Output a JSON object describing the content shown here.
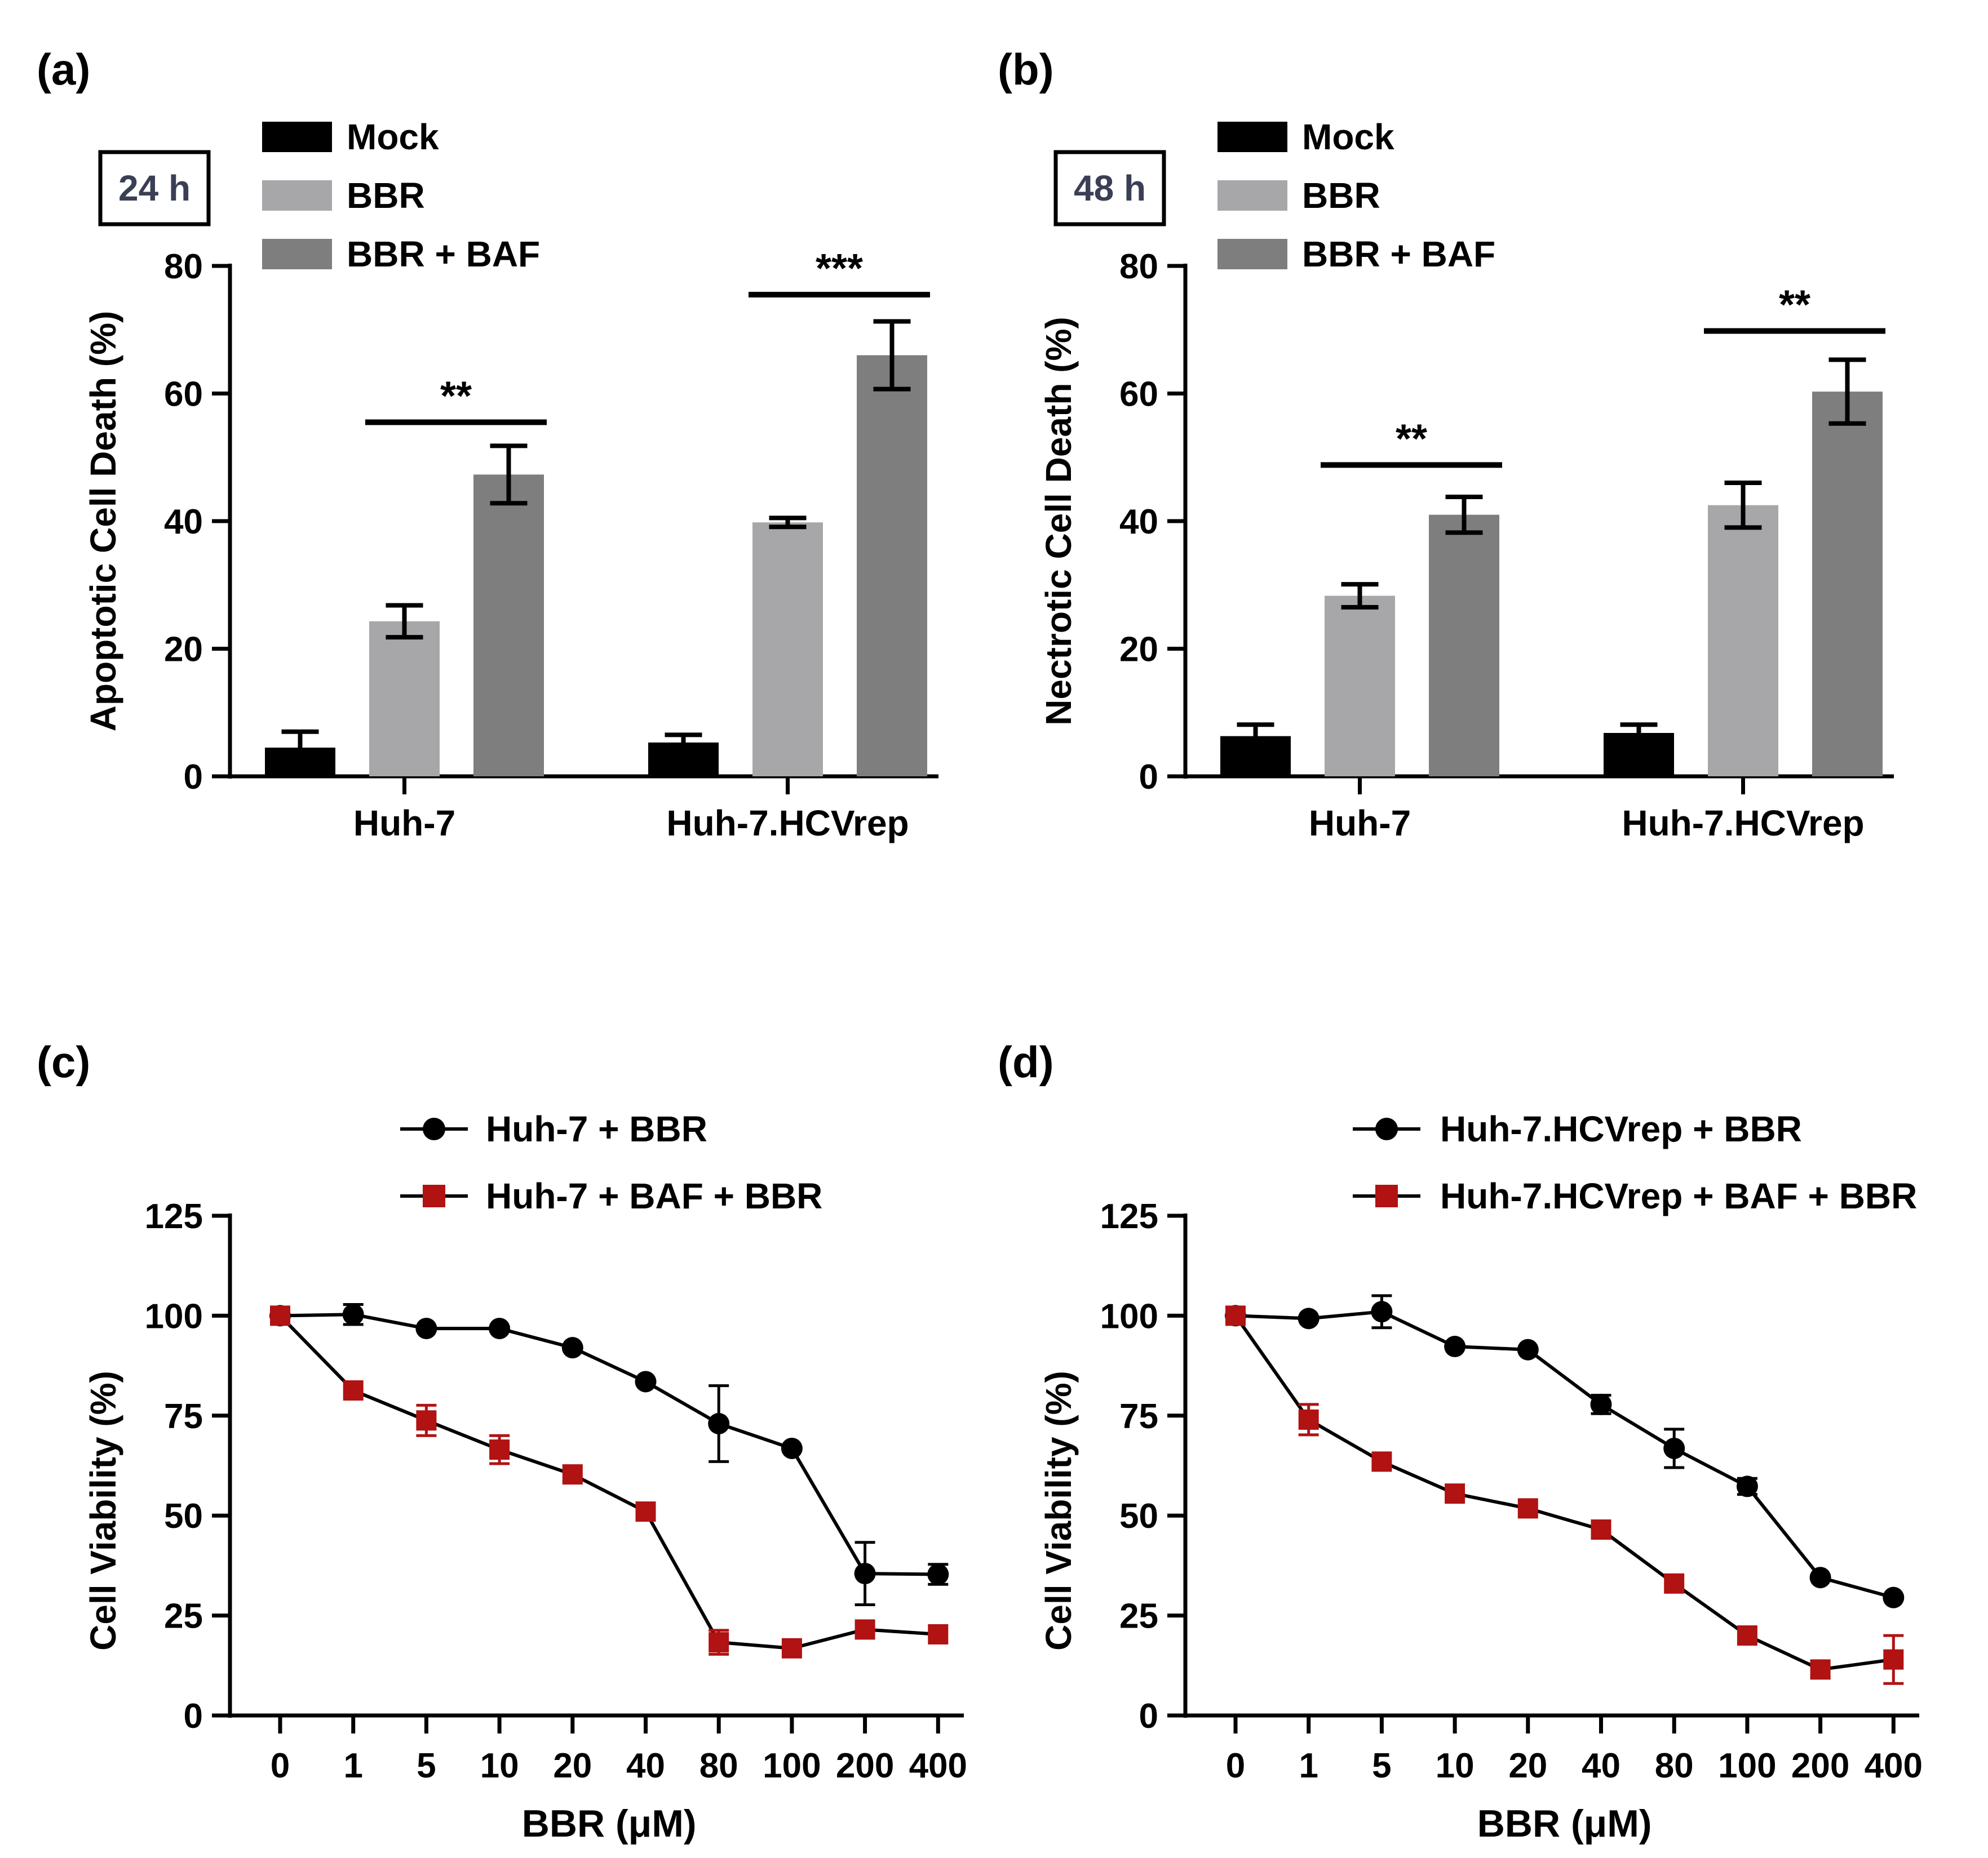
{
  "colors": {
    "mock": "#000000",
    "bbr": "#a7a7aa",
    "bbr_baf": "#7e7e7e",
    "black_line": "#000000",
    "red_line": "#b11212"
  },
  "chart_data": [
    {
      "panel": "(a)",
      "type": "bar",
      "badge": "24 h",
      "ylabel": "Apoptotic Cell Death (%)",
      "xlabel": "",
      "ylim": [
        0,
        80
      ],
      "yticks": [
        "0",
        "20",
        "40",
        "60",
        "80"
      ],
      "categories": [
        "Huh-7",
        "Huh-7.HCVrep"
      ],
      "series": [
        {
          "name": "Mock",
          "values": [
            4.5,
            5.3
          ],
          "errors": [
            2.5,
            1.2
          ]
        },
        {
          "name": "BBR",
          "values": [
            24.3,
            39.8
          ],
          "errors": [
            2.5,
            0.7
          ]
        },
        {
          "name": "BBR + BAF",
          "values": [
            47.3,
            66.0
          ],
          "errors": [
            4.5,
            5.3
          ]
        }
      ],
      "significance": [
        {
          "category": "Huh-7",
          "label": "**",
          "y": 55.5
        },
        {
          "category": "Huh-7.HCVrep",
          "label": "***",
          "y": 75.5
        }
      ]
    },
    {
      "panel": "(b)",
      "type": "bar",
      "badge": "48 h",
      "ylabel": "Nectrotic Cell Death (%)",
      "xlabel": "",
      "ylim": [
        0,
        80
      ],
      "yticks": [
        "0",
        "20",
        "40",
        "60",
        "80"
      ],
      "categories": [
        "Huh-7",
        "Huh-7.HCVrep"
      ],
      "series": [
        {
          "name": "Mock",
          "values": [
            6.3,
            6.8
          ],
          "errors": [
            1.8,
            1.3
          ]
        },
        {
          "name": "BBR",
          "values": [
            28.3,
            42.5
          ],
          "errors": [
            1.8,
            3.5
          ]
        },
        {
          "name": "BBR + BAF",
          "values": [
            41.0,
            60.3
          ],
          "errors": [
            2.8,
            5.0
          ]
        }
      ],
      "significance": [
        {
          "category": "Huh-7",
          "label": "**",
          "y": 48.8
        },
        {
          "category": "Huh-7.HCVrep",
          "label": "**",
          "y": 69.8
        }
      ]
    },
    {
      "panel": "(c)",
      "type": "line",
      "ylabel": "Cell Viability (%)",
      "xlabel": "BBR (μM)",
      "ylim": [
        0,
        125
      ],
      "yticks": [
        "0",
        "25",
        "50",
        "75",
        "100",
        "125"
      ],
      "categories": [
        "0",
        "1",
        "5",
        "10",
        "20",
        "40",
        "80",
        "100",
        "200",
        "400"
      ],
      "series": [
        {
          "name": "Huh-7 + BBR",
          "marker": "circle",
          "values": [
            100,
            100.3,
            96.8,
            96.8,
            92,
            83.5,
            73,
            66.8,
            35.5,
            35.3
          ],
          "errors": [
            0,
            2.5,
            0,
            0,
            0,
            0,
            9.5,
            0,
            7.8,
            2.5
          ]
        },
        {
          "name": "Huh-7 + BAF + BBR",
          "marker": "square",
          "values": [
            100,
            81.3,
            73.8,
            66.5,
            60.3,
            51,
            18.3,
            16.8,
            21.5,
            20.3
          ],
          "errors": [
            0,
            0,
            3.8,
            3.5,
            0,
            0,
            3.0,
            0,
            0,
            0
          ]
        }
      ]
    },
    {
      "panel": "(d)",
      "type": "line",
      "ylabel": "Cell Viability (%)",
      "xlabel": "BBR (μM)",
      "ylim": [
        0,
        125
      ],
      "yticks": [
        "0",
        "25",
        "50",
        "75",
        "100",
        "125"
      ],
      "categories": [
        "0",
        "1",
        "5",
        "10",
        "20",
        "40",
        "80",
        "100",
        "200",
        "400"
      ],
      "series": [
        {
          "name": "Huh-7.HCVrep + BBR",
          "marker": "circle",
          "values": [
            100,
            99.3,
            101,
            92.3,
            91.5,
            77.8,
            66.8,
            57.3,
            34.5,
            29.5
          ],
          "errors": [
            0,
            0,
            4.0,
            0,
            0,
            2.3,
            4.8,
            2.0,
            0,
            0
          ]
        },
        {
          "name": "Huh-7.HCVrep + BAF + BBR",
          "marker": "square",
          "values": [
            100,
            74,
            63.5,
            55.5,
            51.8,
            46.5,
            33,
            20,
            11.5,
            14
          ],
          "errors": [
            0,
            3.8,
            0,
            0,
            0,
            0,
            0,
            0,
            2.0,
            6.0
          ]
        }
      ]
    }
  ]
}
